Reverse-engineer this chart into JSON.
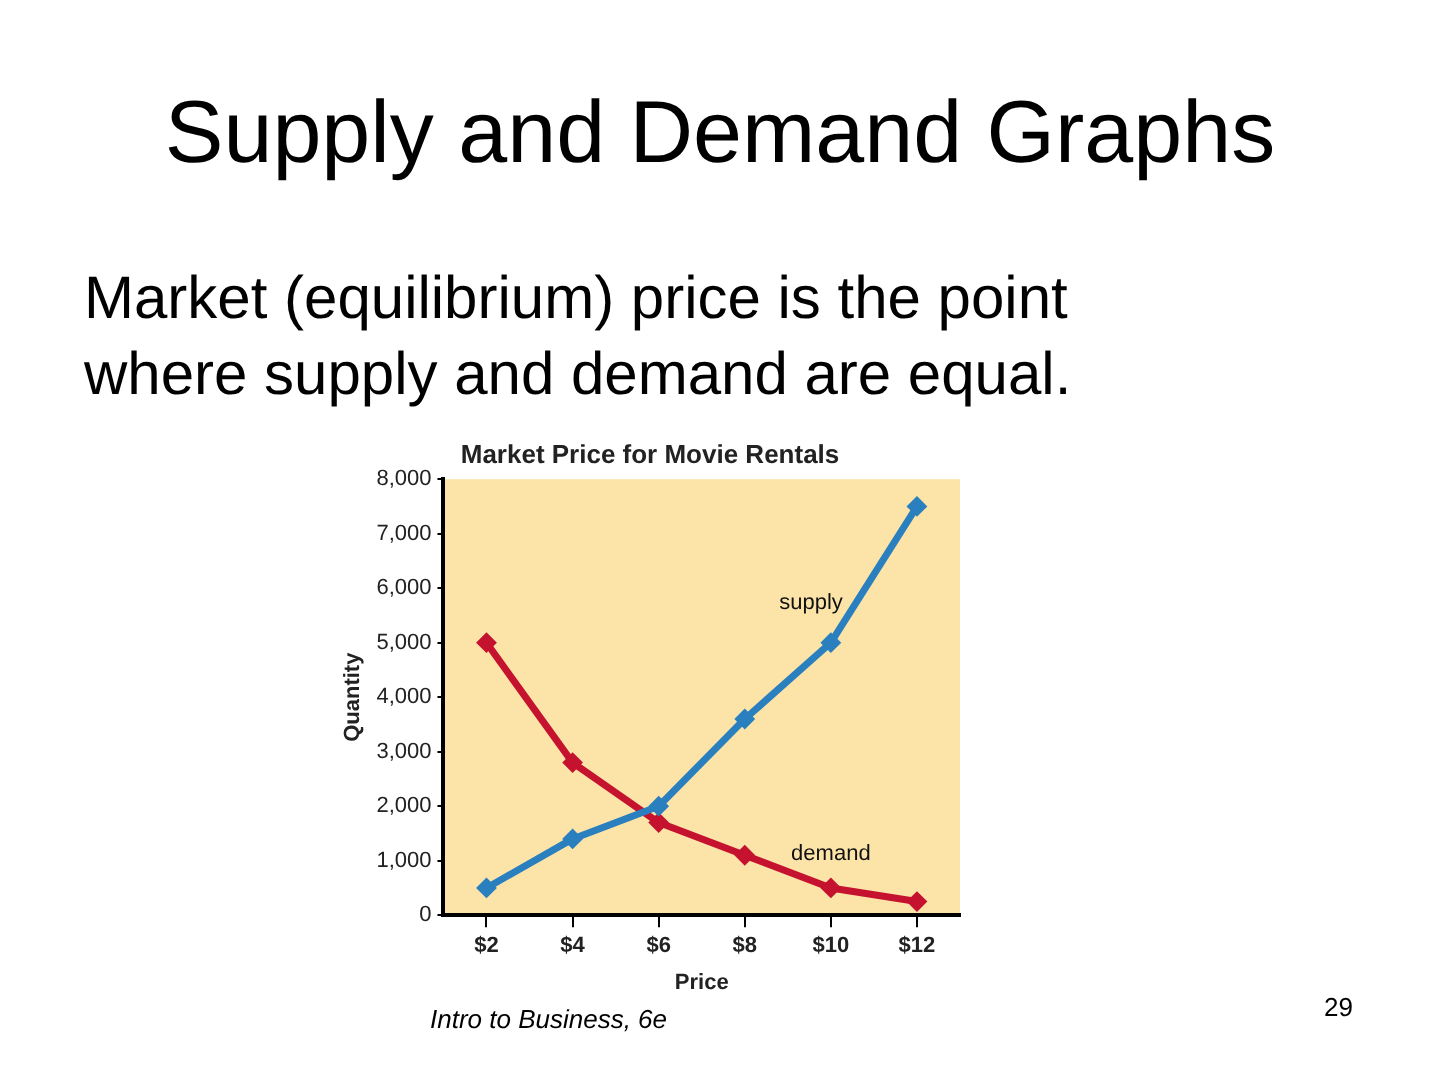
{
  "chart_data": {
    "type": "line",
    "title": "Supply and Demand Graphs",
    "subtitle": "Market (equilibrium) price is the point where supply and demand are equal.",
    "xlabel": "Price",
    "ylabel": "Quantity",
    "annotations": [
      "Market Price for Movie Rentals",
      "Intro to Business, 6e",
      "29"
    ],
    "categories": [
      "$2",
      "$4",
      "$6",
      "$8",
      "$10",
      "$12"
    ],
    "series": [
      {
        "name": "supply",
        "color": "#2a7fbf",
        "values": [
          500,
          1400,
          2000,
          3600,
          5000,
          7500
        ]
      },
      {
        "name": "demand",
        "color": "#c4122f",
        "values": [
          5000,
          2800,
          1700,
          1100,
          500,
          250
        ]
      }
    ],
    "ylim": [
      0,
      8000
    ],
    "yticks": [
      0,
      {
        "value": 1000,
        "label": "1,000"
      },
      {
        "value": 2000,
        "label": "2,000"
      },
      {
        "value": 3000,
        "label": "3,000"
      },
      {
        "value": 4000,
        "label": "4,000"
      },
      {
        "value": 5000,
        "label": "5,000"
      },
      {
        "value": 6000,
        "label": "6,000"
      },
      {
        "value": 7000,
        "label": "7,000"
      },
      {
        "value": 8000,
        "label": "8,000"
      }
    ],
    "grid": false,
    "legend": false,
    "marker": "diamond"
  }
}
